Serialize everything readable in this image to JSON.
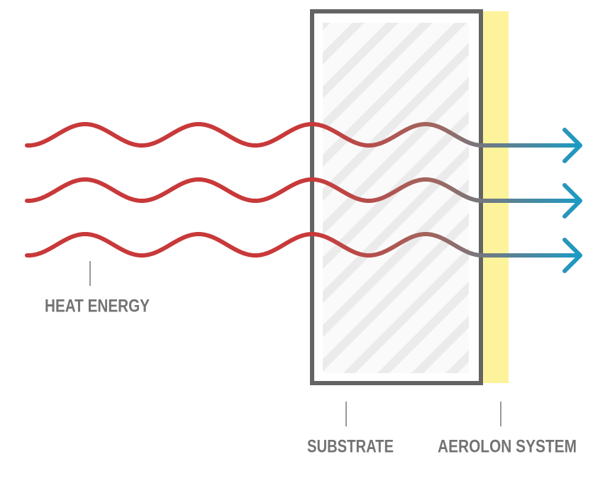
{
  "labels": {
    "heat_energy": "HEAT ENERGY",
    "substrate": "SUBSTRATE",
    "aerolon_system": "AEROLON SYSTEM"
  }
}
